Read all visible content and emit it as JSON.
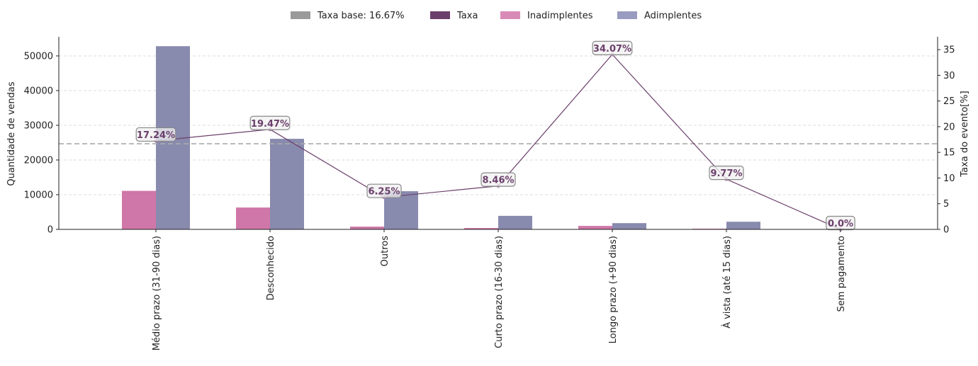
{
  "chart_data": {
    "type": "bar",
    "categories": [
      "Médio prazo (31-90 dias)",
      "Desconhecido",
      "Outros",
      "Curto prazo (16-30 dias)",
      "Longo prazo (+90 dias)",
      "À vista (até 15 dias)",
      "Sem pagamento"
    ],
    "series": [
      {
        "name": "Inadimplentes",
        "values": [
          11100,
          6300,
          800,
          400,
          1000,
          200,
          0
        ],
        "color": "#cf77a8"
      },
      {
        "name": "Adimplentes",
        "values": [
          52800,
          26100,
          11000,
          3900,
          1800,
          2200,
          0
        ],
        "color": "#888aae"
      }
    ],
    "rate_series": {
      "name": "Taxa",
      "values": [
        17.24,
        19.47,
        6.25,
        8.46,
        34.07,
        9.77,
        0.0
      ],
      "labels": [
        "17.24%",
        "19.47%",
        "6.25%",
        "8.46%",
        "34.07%",
        "9.77%",
        "0.0%"
      ],
      "color": "#6b3f6b"
    },
    "base_rate": {
      "label": "Taxa base: 16.67%",
      "value": 16.67,
      "color": "#9a9a9a"
    },
    "ylabel": "Quantidade de vendas",
    "y2label": "Taxa do evento[%]",
    "ylim": [
      0,
      55500
    ],
    "y2lim": [
      0,
      37.5
    ],
    "yticks": [
      0,
      10000,
      20000,
      30000,
      40000,
      50000
    ],
    "y2ticks": [
      0,
      5,
      10,
      15,
      20,
      25,
      30,
      35
    ],
    "grid": true,
    "legend_position": "top-center",
    "legend": [
      {
        "label": "Taxa base: 16.67%",
        "color": "#9a9a9a"
      },
      {
        "label": "Taxa",
        "color": "#6b3f6b"
      },
      {
        "label": "Inadimplentes",
        "color": "#d98bb8"
      },
      {
        "label": "Adimplentes",
        "color": "#9a9bc0"
      }
    ]
  }
}
